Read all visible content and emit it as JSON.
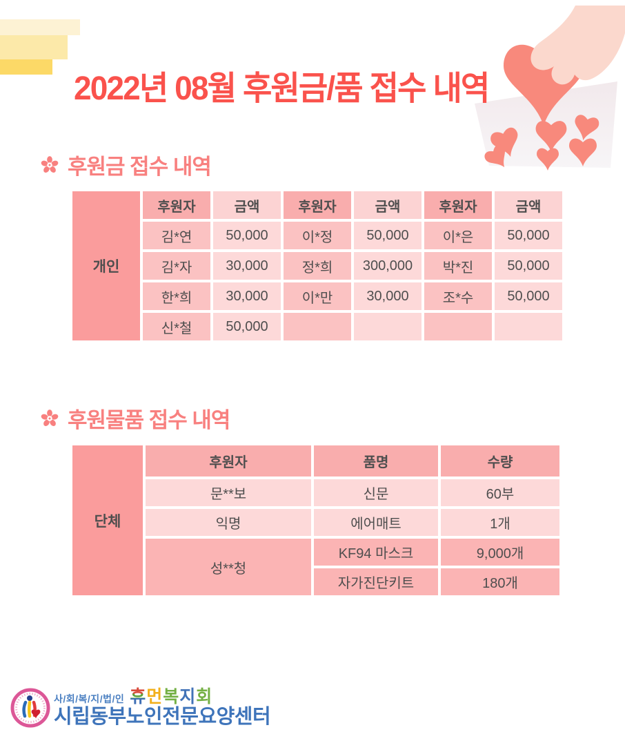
{
  "title": "2022년 08월 후원금/품 접수 내역",
  "section1": {
    "icon": "flower-icon",
    "heading": "후원금 접수 내역"
  },
  "section2": {
    "icon": "flower-icon",
    "heading": "후원물품 접수 내역"
  },
  "money_table": {
    "group_label": "개인",
    "headers": [
      "후원자",
      "금액",
      "후원자",
      "금액",
      "후원자",
      "금액"
    ],
    "rows": [
      [
        "김*연",
        "50,000",
        "이*정",
        "50,000",
        "이*은",
        "50,000"
      ],
      [
        "김*자",
        "30,000",
        "정*희",
        "300,000",
        "박*진",
        "50,000"
      ],
      [
        "한*희",
        "30,000",
        "이*만",
        "30,000",
        "조*수",
        "50,000"
      ],
      [
        "신*철",
        "50,000",
        "",
        "",
        "",
        ""
      ]
    ]
  },
  "goods_table": {
    "group_label": "단체",
    "headers": [
      "후원자",
      "품명",
      "수량"
    ],
    "groups": [
      {
        "donor": "문**보",
        "shade": "light",
        "items": [
          {
            "name": "신문",
            "qty": "60부"
          }
        ]
      },
      {
        "donor": "익명",
        "shade": "light",
        "items": [
          {
            "name": "에어매트",
            "qty": "1개"
          }
        ]
      },
      {
        "donor": "성**청",
        "shade": "dark",
        "items": [
          {
            "name": "KF94 마스크",
            "qty": "9,000개"
          },
          {
            "name": "자가진단키트",
            "qty": "180개"
          }
        ]
      }
    ]
  },
  "footer": {
    "org_type": "사/회/복/지/법/인",
    "org_name_chars": [
      {
        "ch": "휴",
        "color": "rainbow"
      },
      {
        "ch": "먼",
        "color": "#f2b01c"
      },
      {
        "ch": "복",
        "color": "#74b044"
      },
      {
        "ch": "지",
        "color": "#4273b8"
      },
      {
        "ch": "회",
        "color": "#74b044"
      }
    ],
    "center_name": "시립동부노인전문요양센터"
  },
  "colors": {
    "title": "#fa524c",
    "heading": "#f8807f",
    "group_cell": "#fa9c9c",
    "header_donor": "#f9adad",
    "header_amount": "#fcd3d3",
    "data_donor": "#fbc2c2",
    "data_amount": "#fdd9d9",
    "goods_header": "#f9adad",
    "goods_light": "#fdd9d9",
    "goods_dark": "#fbb4b4",
    "table_text": "#4e4e4e",
    "yellow1": "#fdf2d4",
    "yellow2": "#fce9a9",
    "yellow3": "#fcd967",
    "heart_color": "#f8897c",
    "hand_color": "#fbd8cd",
    "basket_top": "#f6eef0",
    "basket_bottom": "#f6f4f6",
    "emblem_ring": "#dc5797",
    "footer_blue": "#3e74ba",
    "footer_small_blue": "#4a7fc1"
  }
}
